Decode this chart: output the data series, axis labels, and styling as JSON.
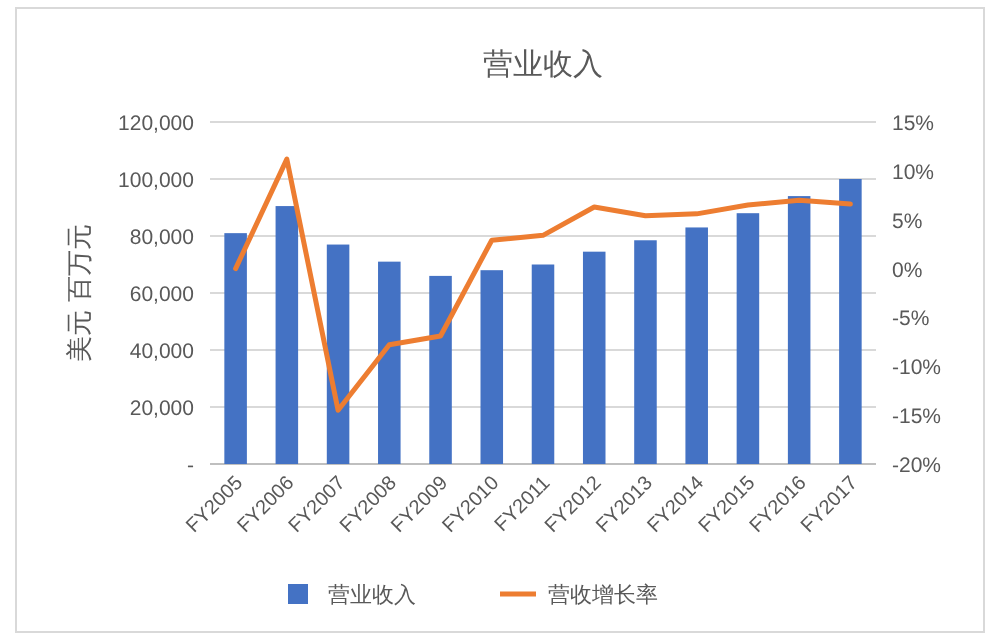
{
  "chart_data": {
    "type": "bar",
    "title": "营业收入",
    "ylabel": "美元 百万元",
    "categories": [
      "FY2005",
      "FY2006",
      "FY2007",
      "FY2008",
      "FY2009",
      "FY2010",
      "FY2011",
      "FY2012",
      "FY2013",
      "FY2014",
      "FY2015",
      "FY2016",
      "FY2017"
    ],
    "series": [
      {
        "name": "营业收入",
        "color": "#4472c4",
        "values": [
          81000,
          90500,
          77000,
          71000,
          66000,
          68000,
          70000,
          74500,
          78500,
          83000,
          88000,
          94000,
          100000
        ]
      },
      {
        "name": "营收增长率",
        "type": "line",
        "axis": "y2",
        "color": "#ed7d31",
        "values": [
          0,
          11.2,
          -14.5,
          -7.8,
          -6.9,
          2.9,
          3.4,
          6.3,
          5.4,
          5.6,
          6.5,
          7.0,
          6.6
        ]
      }
    ],
    "ylim": [
      0,
      120000
    ],
    "yticks": [
      {
        "value": 0,
        "label": "-"
      },
      {
        "value": 20000,
        "label": "20,000"
      },
      {
        "value": 40000,
        "label": "40,000"
      },
      {
        "value": 60000,
        "label": "60,000"
      },
      {
        "value": 80000,
        "label": "80,000"
      },
      {
        "value": 100000,
        "label": "100,000"
      },
      {
        "value": 120000,
        "label": "120,000"
      }
    ],
    "y2lim": [
      -20,
      15
    ],
    "y2ticks": [
      {
        "value": -20,
        "label": "-20%"
      },
      {
        "value": -15,
        "label": "-15%"
      },
      {
        "value": -10,
        "label": "-10%"
      },
      {
        "value": -5,
        "label": "-5%"
      },
      {
        "value": 0,
        "label": "0%"
      },
      {
        "value": 5,
        "label": "5%"
      },
      {
        "value": 10,
        "label": "10%"
      },
      {
        "value": 15,
        "label": "15%"
      }
    ],
    "grid": "y",
    "legend": "bottom"
  }
}
